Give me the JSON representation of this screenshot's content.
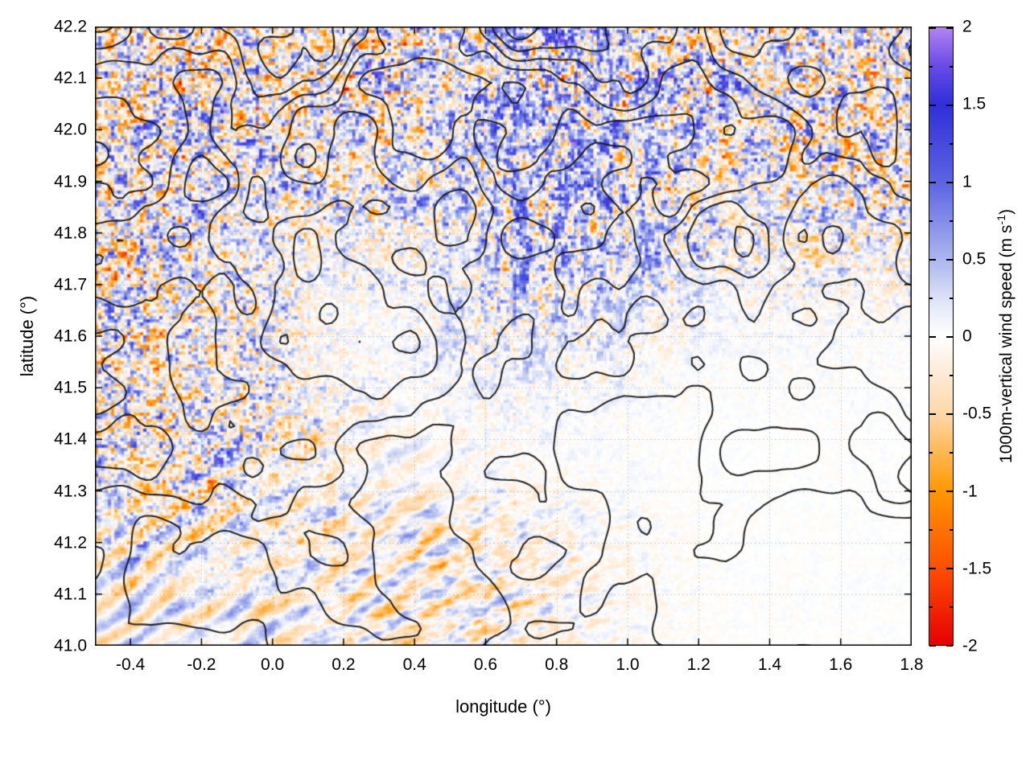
{
  "figure": {
    "background": "#ffffff"
  },
  "axes": {
    "xlabel": "longitude (°)",
    "ylabel": "latitude (°)",
    "x_ticks": [
      {
        "v": -0.4,
        "label": "-0.4"
      },
      {
        "v": -0.2,
        "label": "-0.2"
      },
      {
        "v": 0.0,
        "label": "0.0"
      },
      {
        "v": 0.2,
        "label": "0.2"
      },
      {
        "v": 0.4,
        "label": "0.4"
      },
      {
        "v": 0.6,
        "label": "0.6"
      },
      {
        "v": 0.8,
        "label": "0.8"
      },
      {
        "v": 1.0,
        "label": "1.0"
      },
      {
        "v": 1.2,
        "label": "1.2"
      },
      {
        "v": 1.4,
        "label": "1.4"
      },
      {
        "v": 1.6,
        "label": "1.6"
      },
      {
        "v": 1.8,
        "label": "1.8"
      }
    ],
    "y_ticks": [
      {
        "v": 41.0,
        "label": "41.0"
      },
      {
        "v": 41.1,
        "label": "41.1"
      },
      {
        "v": 41.2,
        "label": "41.2"
      },
      {
        "v": 41.3,
        "label": "41.3"
      },
      {
        "v": 41.4,
        "label": "41.4"
      },
      {
        "v": 41.5,
        "label": "41.5"
      },
      {
        "v": 41.6,
        "label": "41.6"
      },
      {
        "v": 41.7,
        "label": "41.7"
      },
      {
        "v": 41.8,
        "label": "41.8"
      },
      {
        "v": 41.9,
        "label": "41.9"
      },
      {
        "v": 42.0,
        "label": "42.0"
      },
      {
        "v": 42.1,
        "label": "42.1"
      },
      {
        "v": 42.2,
        "label": "42.2"
      }
    ]
  },
  "colorbar": {
    "label_main": "1000m-vertical wind speed (m s",
    "label_sup": "-1",
    "label_end": ")",
    "ticks": [
      {
        "v": -2,
        "label": "-2"
      },
      {
        "v": -1.5,
        "label": "-1.5"
      },
      {
        "v": -1,
        "label": "-1"
      },
      {
        "v": -0.5,
        "label": "-0.5"
      },
      {
        "v": 0,
        "label": "0"
      },
      {
        "v": 0.5,
        "label": "0.5"
      },
      {
        "v": 1,
        "label": "1"
      },
      {
        "v": 1.5,
        "label": "1.5"
      },
      {
        "v": 2,
        "label": "2"
      }
    ],
    "minor_ticks": [
      -1.75,
      -1.25,
      -0.75,
      -0.25,
      0.25,
      0.75,
      1.25,
      1.75
    ]
  },
  "chart_data": {
    "type": "heatmap",
    "title": "",
    "xlabel": "longitude (°)",
    "ylabel": "latitude (°)",
    "xlim": [
      -0.5,
      1.8
    ],
    "ylim": [
      41.0,
      42.2
    ],
    "x_tick_step": 0.2,
    "y_tick_step": 0.1,
    "grid": "faint dotted grey at every tick",
    "colorbar": {
      "label": "1000m-vertical wind speed (m s⁻¹)",
      "lim": [
        -2,
        2
      ],
      "tick_step": 0.5,
      "position": "right"
    },
    "palette_stops": [
      {
        "v": -2.0,
        "c": "#e60000"
      },
      {
        "v": -1.5,
        "c": "#ff4f00"
      },
      {
        "v": -1.0,
        "c": "#ff9800"
      },
      {
        "v": -0.5,
        "c": "#ffd8a8"
      },
      {
        "v": -0.2,
        "c": "#fdeedd"
      },
      {
        "v": 0.0,
        "c": "#ffffff"
      },
      {
        "v": 0.2,
        "c": "#e4e9f8"
      },
      {
        "v": 0.5,
        "c": "#aab6ee"
      },
      {
        "v": 1.0,
        "c": "#5b63e3"
      },
      {
        "v": 1.5,
        "c": "#2f2fd8"
      },
      {
        "v": 1.75,
        "c": "#6a4ae6"
      },
      {
        "v": 2.0,
        "c": "#b184f2"
      }
    ],
    "overlay": "black terrain-elevation contour lines; nested wiggly loops over most of the map, parallel diagonal contours toward the calm south-east corner",
    "field": "noisy turbulent vertical-wind-speed field: strong saturated ±2 m/s pixel speckle across the north and north-west, vertical blue/purple streaks near lon 0.6-0.9 down to lat 41.5, blue wave-train arcs in the south-west, near-zero pale field in the south-east",
    "render": {
      "field": {
        "lowres": [
          508,
          385
        ],
        "seed_fine": 11,
        "seed_med": 23,
        "seed_big": 37,
        "seed_wavephase": 51,
        "seed_waveenv": 63,
        "seed_ribbon": 91,
        "seed_streak": 103,
        "fine_freq": 0.4,
        "fine_amp": 2.0,
        "med_freq": 0.11,
        "med_amp": 1.0,
        "big_freq": 0.028,
        "wave_kx": 0.17,
        "wave_ky": 0.24,
        "wave_amp": 0.75,
        "band_center": 0.57,
        "band_sigma": 0.16,
        "ribbon_amp": 0.9,
        "ribbon_bias": 0.3,
        "base": 0.14,
        "mask_gain": 0.95,
        "se_damp": 0.72
      },
      "contours": {
        "grid": [
          145,
          110
        ],
        "freq": 0.052,
        "seed": 77,
        "amp_top": 1.05,
        "amp_bottom": 0.55,
        "slope_x": 0.28,
        "slope_y": 0.55,
        "levels": [
          0.22,
          0.44,
          0.66,
          0.88,
          1.1,
          1.32
        ],
        "color": "rgba(25,25,25,0.92)",
        "line_width": 2.1
      }
    }
  }
}
